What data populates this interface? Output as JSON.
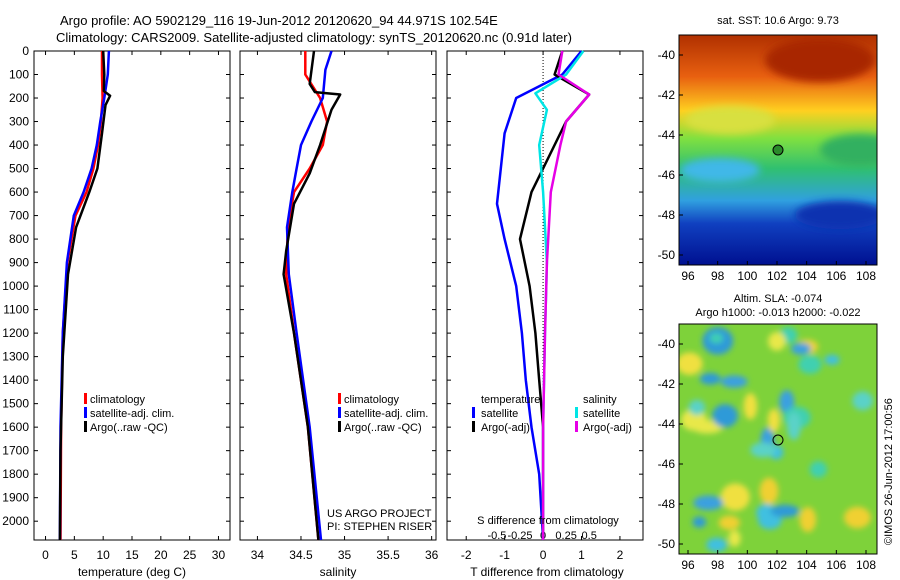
{
  "header": {
    "line1": "Argo profile: AO 5902129_116 19-Jun-2012 20120620_94 44.971S 102.54E",
    "line2": "Climatology: CARS2009. Satellite-adjusted climatology: synTS_20120620.nc (0.91d later)"
  },
  "depth_ticks": [
    "0",
    "100",
    "200",
    "300",
    "400",
    "500",
    "600",
    "700",
    "800",
    "900",
    "1000",
    "1100",
    "1200",
    "1300",
    "1400",
    "1500",
    "1600",
    "1700",
    "1800",
    "1900",
    "2000"
  ],
  "colors": {
    "climatology": "#ff0000",
    "satellite": "#0000ff",
    "argo": "#000000",
    "salinity_sat": "#00e5e5",
    "salinity_argo": "#e600e6"
  },
  "chart_data": [
    {
      "type": "line",
      "xlabel": "temperature (deg C)",
      "xticks": [
        "0",
        "5",
        "10",
        "15",
        "20",
        "25",
        "30"
      ],
      "xlim": [
        -2,
        32
      ],
      "ylim": [
        0,
        2080
      ],
      "series": [
        {
          "name": "climatology",
          "color": "red",
          "x": [
            9.8,
            9.8,
            9.9,
            9.6,
            9.1,
            8.3,
            7.1,
            5.2,
            3.8,
            3.0,
            2.7,
            2.6
          ],
          "depth": [
            0,
            100,
            200,
            300,
            400,
            500,
            600,
            700,
            900,
            1200,
            1600,
            2080
          ]
        },
        {
          "name": "satellite-adj. clim.",
          "color": "blue",
          "x": [
            11,
            10.8,
            10.2,
            9.5,
            8.9,
            8.0,
            6.6,
            4.9,
            3.7,
            3.0,
            2.6,
            2.5
          ],
          "depth": [
            0,
            100,
            200,
            300,
            400,
            500,
            600,
            700,
            900,
            1200,
            1600,
            2080
          ]
        },
        {
          "name": "Argo(..raw -QC)",
          "color": "black",
          "x": [
            10,
            10.2,
            10.1,
            11.2,
            10.4,
            9.8,
            9.0,
            7.6,
            5.3,
            3.9,
            3.0,
            2.6,
            2.5
          ],
          "depth": [
            0,
            100,
            170,
            190,
            230,
            350,
            500,
            600,
            750,
            950,
            1300,
            1700,
            2080
          ]
        }
      ],
      "legend": [
        "climatology",
        "satellite-adj. clim.",
        "Argo(..raw -QC)"
      ]
    },
    {
      "type": "line",
      "xlabel": "salinity",
      "xticks": [
        "34",
        "34.5",
        "35",
        "35.5",
        "36"
      ],
      "xlim": [
        33.8,
        36.05
      ],
      "ylim": [
        0,
        2080
      ],
      "series": [
        {
          "name": "climatology",
          "color": "red",
          "x": [
            34.55,
            34.55,
            34.72,
            34.8,
            34.75,
            34.6,
            34.42,
            34.35,
            34.33,
            34.42,
            34.58,
            34.7
          ],
          "depth": [
            0,
            100,
            200,
            300,
            400,
            500,
            600,
            750,
            950,
            1200,
            1600,
            2080
          ]
        },
        {
          "name": "satellite-adj. clim.",
          "color": "blue",
          "x": [
            34.85,
            34.78,
            34.75,
            34.62,
            34.5,
            34.45,
            34.4,
            34.34,
            34.36,
            34.45,
            34.6,
            34.73
          ],
          "depth": [
            0,
            80,
            200,
            300,
            400,
            500,
            600,
            750,
            950,
            1200,
            1600,
            2080
          ]
        },
        {
          "name": "Argo(..raw -QC)",
          "color": "black",
          "x": [
            34.65,
            34.6,
            34.66,
            34.95,
            34.85,
            34.72,
            34.6,
            34.42,
            34.33,
            34.3,
            34.42,
            34.58,
            34.7
          ],
          "depth": [
            0,
            140,
            175,
            185,
            250,
            400,
            520,
            650,
            850,
            950,
            1200,
            1600,
            2080
          ]
        }
      ],
      "legend": [
        "climatology",
        "satellite-adj. clim.",
        "Argo(..raw -QC)"
      ],
      "annotations": [
        "US ARGO PROJECT",
        "PI: STEPHEN RISER"
      ]
    },
    {
      "type": "line",
      "xlabel": "T difference from climatology",
      "xlabel_top": "S difference from climatology",
      "xticks": [
        "-2",
        "-1",
        "0",
        "1",
        "2"
      ],
      "sticks": [
        "-0.5",
        "-0.25",
        "0",
        "0.25",
        "0.5"
      ],
      "xlim": [
        -2.5,
        2.6
      ],
      "ylim": [
        0,
        2080
      ],
      "series": [
        {
          "name": "temperature satellite",
          "color": "blue",
          "x": [
            1.0,
            0.5,
            -0.7,
            -1.0,
            -1.1,
            -1.2,
            -1.0,
            -0.7,
            -0.55,
            -0.45,
            -0.3,
            -0.1,
            0
          ],
          "depth": [
            0,
            100,
            200,
            350,
            500,
            650,
            800,
            1000,
            1200,
            1400,
            1600,
            1800,
            2080
          ]
        },
        {
          "name": "temperature Argo(-adj)",
          "color": "black",
          "x": [
            0.5,
            0.3,
            1.2,
            0.6,
            0.3,
            -0.3,
            -0.6,
            -0.35,
            -0.2,
            -0.1,
            0,
            0
          ],
          "depth": [
            0,
            100,
            185,
            300,
            400,
            600,
            800,
            1000,
            1200,
            1400,
            1600,
            2080
          ]
        },
        {
          "name": "salinity satellite",
          "color": "cyan",
          "x": [
            1.05,
            0.6,
            -0.2,
            0.1,
            -0.1,
            0.0,
            0.1,
            0.05,
            0.0,
            0
          ],
          "depth": [
            0,
            100,
            180,
            250,
            400,
            600,
            900,
            1200,
            1600,
            2080
          ]
        },
        {
          "name": "salinity Argo(-adj)",
          "color": "magenta",
          "x": [
            0.5,
            0.4,
            1.2,
            0.6,
            0.45,
            0.2,
            0.1,
            0.05,
            0,
            0
          ],
          "depth": [
            0,
            100,
            185,
            300,
            400,
            600,
            900,
            1200,
            1600,
            2080
          ]
        }
      ],
      "legend_titles": [
        "temperature",
        "salinity"
      ],
      "legend": [
        "satellite",
        "Argo(-adj)",
        "satellite",
        "Argo(-adj)"
      ]
    }
  ],
  "maps": {
    "sst_title": "sat. SST: 10.6 Argo: 9.73",
    "sla_title1": "Altim. SLA: -0.074",
    "sla_title2": "Argo h1000: -0.013 h2000: -0.022",
    "lat_ticks": [
      "-40",
      "-42",
      "-44",
      "-46",
      "-48",
      "-50"
    ],
    "lon_ticks": [
      "96",
      "98",
      "100",
      "102",
      "104",
      "106",
      "108"
    ]
  },
  "side_label": "©IMOS 26-Jun-2012 17:00:56"
}
